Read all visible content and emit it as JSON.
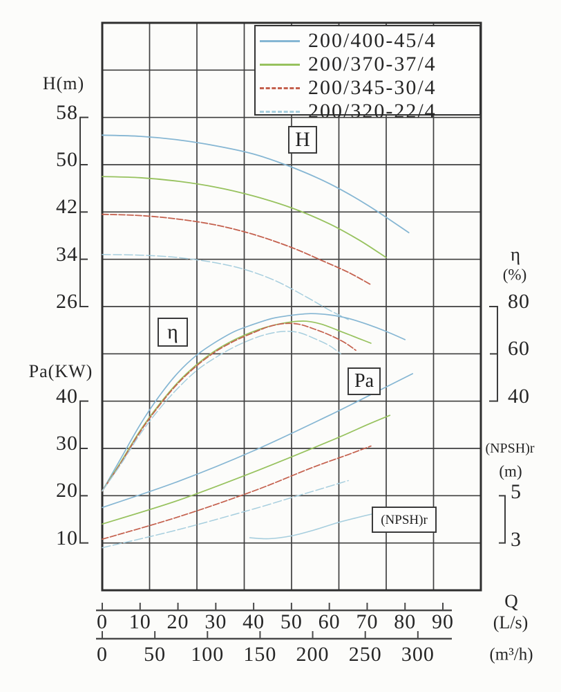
{
  "chart_data": {
    "type": "line",
    "title": "",
    "description": "Centrifugal pump performance chart: head H, efficiency, shaft power Pa and (NPSH)r versus flow rate Q for four pump models",
    "legend": {
      "position": "top-right",
      "entries": [
        {
          "label": "200/400-45/4",
          "color": "#85b6d3",
          "style": "solid"
        },
        {
          "label": "200/370-37/4",
          "color": "#97c25e",
          "style": "solid"
        },
        {
          "label": "200/345-30/4",
          "color": "#c4604d",
          "style": "dashed"
        },
        {
          "label": "200/320-22/4",
          "color": "#a6cede",
          "style": "dashed"
        }
      ]
    },
    "axes": {
      "x_primary": {
        "label": "Q",
        "unit": "(L/s)",
        "ticks": [
          0,
          10,
          20,
          30,
          40,
          50,
          60,
          70,
          80,
          90
        ],
        "range": [
          0,
          100
        ]
      },
      "x_secondary": {
        "unit": "(m³/h)",
        "ticks": [
          0,
          50,
          100,
          150,
          200,
          250,
          300
        ],
        "range": [
          0,
          360
        ]
      },
      "y_head": {
        "label": "H(m)",
        "ticks": [
          58,
          50,
          42,
          34,
          26
        ],
        "range": [
          26,
          58
        ]
      },
      "y_power": {
        "label": "Pa(KW)",
        "ticks": [
          40,
          30,
          20,
          10
        ],
        "range": [
          10,
          40
        ]
      },
      "y_efficiency": {
        "label": "η",
        "unit": "(%)",
        "ticks": [
          80,
          60,
          40
        ],
        "range": [
          40,
          80
        ]
      },
      "y_npsh": {
        "label": "(NPSH)r",
        "unit": "(m)",
        "ticks": [
          5,
          3
        ],
        "range": [
          3,
          5
        ]
      }
    },
    "group_labels": {
      "h": "H",
      "eta": "η",
      "pa": "Pa",
      "npsh": "(NPSH)r"
    },
    "grid": {
      "show": true,
      "columns": 8,
      "rows": 12
    },
    "series": [
      {
        "pump": "200/400-45/4",
        "quantity": "H",
        "unit": "m",
        "color": "#85b6d3",
        "width": 1.8,
        "dash": null,
        "points": [
          [
            0,
            55
          ],
          [
            10,
            54.8
          ],
          [
            20,
            54.2
          ],
          [
            30,
            53.2
          ],
          [
            40,
            51.8
          ],
          [
            50,
            49.6
          ],
          [
            60,
            46.8
          ],
          [
            70,
            43.2
          ],
          [
            81,
            38.5
          ]
        ]
      },
      {
        "pump": "200/370-37/4",
        "quantity": "H",
        "unit": "m",
        "color": "#97c25e",
        "width": 1.8,
        "dash": null,
        "points": [
          [
            0,
            48
          ],
          [
            10,
            47.8
          ],
          [
            20,
            47.2
          ],
          [
            30,
            46.2
          ],
          [
            40,
            44.7
          ],
          [
            50,
            42.7
          ],
          [
            60,
            40
          ],
          [
            68,
            37.2
          ],
          [
            75,
            34.3
          ]
        ]
      },
      {
        "pump": "200/345-30/4",
        "quantity": "H",
        "unit": "m",
        "color": "#c4604d",
        "width": 1.8,
        "dash": "9 3",
        "points": [
          [
            0,
            41.6
          ],
          [
            10,
            41.4
          ],
          [
            20,
            40.8
          ],
          [
            30,
            39.8
          ],
          [
            40,
            38.2
          ],
          [
            50,
            36
          ],
          [
            58,
            33.8
          ],
          [
            65,
            31.8
          ],
          [
            71,
            29.7
          ]
        ]
      },
      {
        "pump": "200/320-22/4",
        "quantity": "H",
        "unit": "m",
        "color": "#a6cede",
        "width": 1.5,
        "dash": "12 4",
        "points": [
          [
            0,
            34.8
          ],
          [
            10,
            34.7
          ],
          [
            20,
            34.3
          ],
          [
            30,
            33.4
          ],
          [
            38,
            32.2
          ],
          [
            46,
            30.3
          ],
          [
            54,
            27.6
          ],
          [
            60,
            25.4
          ],
          [
            65,
            23.8
          ]
        ]
      },
      {
        "pump": "200/400-45/4",
        "quantity": "eta",
        "unit": "%",
        "color": "#85b6d3",
        "width": 1.7,
        "dash": null,
        "points": [
          [
            0,
            2
          ],
          [
            5,
            16
          ],
          [
            10,
            30
          ],
          [
            15,
            42
          ],
          [
            20,
            52
          ],
          [
            25,
            59.5
          ],
          [
            30,
            65
          ],
          [
            35,
            69.5
          ],
          [
            40,
            72.5
          ],
          [
            45,
            75
          ],
          [
            50,
            76.3
          ],
          [
            55,
            77
          ],
          [
            60,
            76.5
          ],
          [
            65,
            75
          ],
          [
            70,
            72.5
          ],
          [
            75,
            69.5
          ],
          [
            80,
            66
          ]
        ]
      },
      {
        "pump": "200/370-37/4",
        "quantity": "eta",
        "unit": "%",
        "color": "#97c25e",
        "width": 1.7,
        "dash": null,
        "points": [
          [
            0,
            2
          ],
          [
            5,
            14.5
          ],
          [
            10,
            27.5
          ],
          [
            15,
            38.5
          ],
          [
            20,
            48
          ],
          [
            25,
            55.5
          ],
          [
            30,
            61.5
          ],
          [
            35,
            66
          ],
          [
            40,
            69.5
          ],
          [
            45,
            72
          ],
          [
            50,
            73.5
          ],
          [
            54,
            73.8
          ],
          [
            58,
            72.5
          ],
          [
            63,
            69.5
          ],
          [
            67,
            67
          ],
          [
            71,
            64.5
          ]
        ]
      },
      {
        "pump": "200/345-30/4",
        "quantity": "eta",
        "unit": "%",
        "color": "#c4604d",
        "width": 1.7,
        "dash": "9 3",
        "points": [
          [
            0,
            2
          ],
          [
            5,
            14
          ],
          [
            10,
            27
          ],
          [
            15,
            38
          ],
          [
            20,
            47.5
          ],
          [
            25,
            55
          ],
          [
            30,
            61
          ],
          [
            35,
            65.5
          ],
          [
            40,
            69
          ],
          [
            44,
            71.5
          ],
          [
            48,
            72.8
          ],
          [
            52,
            72.5
          ],
          [
            56,
            70.5
          ],
          [
            60,
            68
          ],
          [
            64,
            64.8
          ],
          [
            67,
            61.5
          ]
        ]
      },
      {
        "pump": "200/320-22/4",
        "quantity": "eta",
        "unit": "%",
        "color": "#a6cede",
        "width": 1.5,
        "dash": "12 4",
        "points": [
          [
            0,
            2
          ],
          [
            5,
            13.5
          ],
          [
            10,
            26
          ],
          [
            15,
            36.5
          ],
          [
            20,
            45.5
          ],
          [
            25,
            53
          ],
          [
            30,
            58.5
          ],
          [
            35,
            63
          ],
          [
            40,
            66.5
          ],
          [
            44,
            68.5
          ],
          [
            48,
            69.5
          ],
          [
            52,
            69
          ],
          [
            56,
            66.5
          ],
          [
            60,
            63.5
          ],
          [
            63,
            60
          ]
        ]
      },
      {
        "pump": "200/400-45/4",
        "quantity": "Pa",
        "unit": "KW",
        "color": "#85b6d3",
        "width": 1.7,
        "dash": null,
        "points": [
          [
            0,
            17.5
          ],
          [
            20,
            23
          ],
          [
            40,
            29.5
          ],
          [
            60,
            37
          ],
          [
            75,
            43
          ],
          [
            82,
            45.8
          ]
        ]
      },
      {
        "pump": "200/370-37/4",
        "quantity": "Pa",
        "unit": "KW",
        "color": "#97c25e",
        "width": 1.7,
        "dash": null,
        "points": [
          [
            0,
            14
          ],
          [
            20,
            19
          ],
          [
            40,
            25
          ],
          [
            60,
            31.5
          ],
          [
            70,
            35
          ],
          [
            76,
            37
          ]
        ]
      },
      {
        "pump": "200/345-30/4",
        "quantity": "Pa",
        "unit": "KW",
        "color": "#c4604d",
        "width": 1.7,
        "dash": "9 3",
        "points": [
          [
            0,
            10.8
          ],
          [
            20,
            15.5
          ],
          [
            40,
            21
          ],
          [
            55,
            25.8
          ],
          [
            65,
            28.7
          ],
          [
            71,
            30.5
          ]
        ]
      },
      {
        "pump": "200/320-22/4",
        "quantity": "Pa",
        "unit": "KW",
        "color": "#a6cede",
        "width": 1.5,
        "dash": "12 4",
        "points": [
          [
            0,
            9
          ],
          [
            20,
            12.8
          ],
          [
            40,
            17.2
          ],
          [
            50,
            19.6
          ],
          [
            58,
            21.5
          ],
          [
            65,
            23.2
          ]
        ]
      },
      {
        "pump": "200/400-45/4",
        "quantity": "npsh",
        "unit": "m",
        "color": "#a6cede",
        "width": 1.6,
        "dash": null,
        "points": [
          [
            39,
            3.22
          ],
          [
            44,
            3.18
          ],
          [
            50,
            3.3
          ],
          [
            56,
            3.55
          ],
          [
            62,
            3.85
          ],
          [
            68,
            4.1
          ],
          [
            72,
            4.25
          ]
        ]
      }
    ]
  }
}
